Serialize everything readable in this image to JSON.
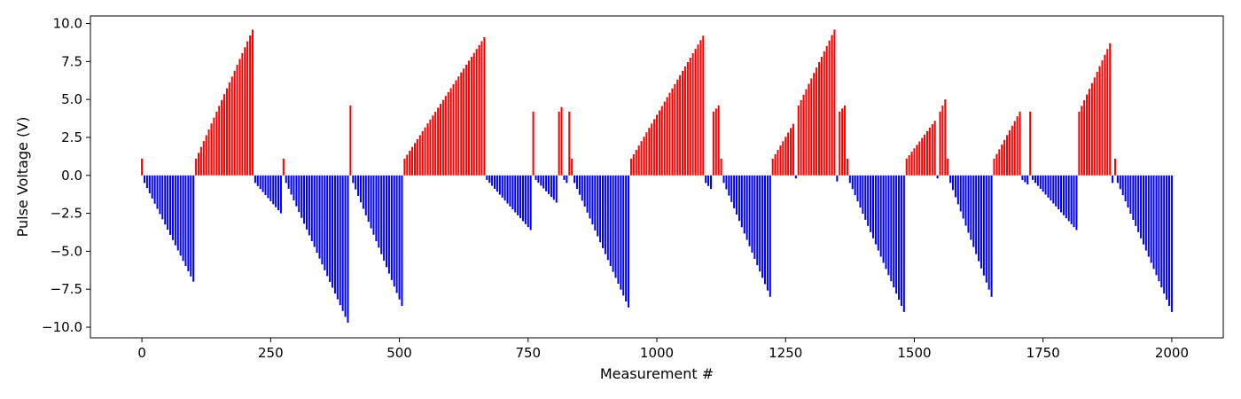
{
  "chart_data": {
    "type": "bar",
    "title": "",
    "xlabel": "Measurement #",
    "ylabel": "Pulse Voltage (V)",
    "xlim": [
      -100,
      2100
    ],
    "ylim": [
      -10.7,
      10.5
    ],
    "xticks": [
      0,
      250,
      500,
      750,
      1000,
      1250,
      1500,
      1750,
      2000
    ],
    "xtick_labels": [
      "0",
      "250",
      "500",
      "750",
      "1000",
      "1250",
      "1500",
      "1750",
      "2000"
    ],
    "yticks": [
      10.0,
      7.5,
      5.0,
      2.5,
      0.0,
      -2.5,
      -5.0,
      -7.5,
      -10.0
    ],
    "ytick_labels": [
      "10.0",
      "7.5",
      "5.0",
      "2.5",
      "0.0",
      "−10.0"
    ],
    "ytick_labels_full": [
      "10.0",
      "7.5",
      "5.0",
      "2.5",
      "0.0",
      "−2.5",
      "−5.0",
      "−7.5",
      "−10.0"
    ],
    "grid": false,
    "legend": "none",
    "bar_width": 3.5,
    "colors": {
      "positive": "#ff0000",
      "negative": "#0000ff"
    },
    "segments": [
      {
        "start": 0,
        "end": 0,
        "from": 1.1,
        "to": 1.1
      },
      {
        "start": 5,
        "end": 100,
        "from": -0.5,
        "to": -7.0
      },
      {
        "start": 105,
        "end": 215,
        "from": 1.1,
        "to": 9.6
      },
      {
        "start": 220,
        "end": 270,
        "from": -0.5,
        "to": -2.5
      },
      {
        "start": 275,
        "end": 275,
        "from": 1.1,
        "to": 1.1
      },
      {
        "start": 280,
        "end": 400,
        "from": -0.5,
        "to": -9.7
      },
      {
        "start": 405,
        "end": 405,
        "from": 4.6,
        "to": 4.6
      },
      {
        "start": 410,
        "end": 505,
        "from": -0.5,
        "to": -8.6
      },
      {
        "start": 510,
        "end": 665,
        "from": 1.1,
        "to": 9.1
      },
      {
        "start": 670,
        "end": 755,
        "from": -0.3,
        "to": -3.6
      },
      {
        "start": 760,
        "end": 760,
        "from": 4.2,
        "to": 4.2
      },
      {
        "start": 765,
        "end": 805,
        "from": -0.3,
        "to": -1.8
      },
      {
        "start": 810,
        "end": 815,
        "from": 4.2,
        "to": 4.5
      },
      {
        "start": 820,
        "end": 825,
        "from": -0.3,
        "to": -0.5
      },
      {
        "start": 830,
        "end": 830,
        "from": 4.2,
        "to": 4.2
      },
      {
        "start": 835,
        "end": 835,
        "from": 1.1,
        "to": 1.1
      },
      {
        "start": 840,
        "end": 945,
        "from": -0.5,
        "to": -8.7
      },
      {
        "start": 950,
        "end": 1090,
        "from": 1.1,
        "to": 9.2
      },
      {
        "start": 1095,
        "end": 1105,
        "from": -0.5,
        "to": -0.9
      },
      {
        "start": 1110,
        "end": 1120,
        "from": 4.2,
        "to": 4.6
      },
      {
        "start": 1125,
        "end": 1125,
        "from": 1.1,
        "to": 1.1
      },
      {
        "start": 1130,
        "end": 1220,
        "from": -0.5,
        "to": -8.0
      },
      {
        "start": 1225,
        "end": 1265,
        "from": 1.1,
        "to": 3.4
      },
      {
        "start": 1270,
        "end": 1270,
        "from": -0.2,
        "to": -0.2
      },
      {
        "start": 1275,
        "end": 1345,
        "from": 4.6,
        "to": 9.6
      },
      {
        "start": 1350,
        "end": 1350,
        "from": -0.4,
        "to": -0.4
      },
      {
        "start": 1355,
        "end": 1365,
        "from": 4.2,
        "to": 4.6
      },
      {
        "start": 1370,
        "end": 1370,
        "from": 1.1,
        "to": 1.1
      },
      {
        "start": 1375,
        "end": 1480,
        "from": -0.5,
        "to": -9.0
      },
      {
        "start": 1485,
        "end": 1540,
        "from": 1.1,
        "to": 3.6
      },
      {
        "start": 1545,
        "end": 1545,
        "from": -0.2,
        "to": -0.2
      },
      {
        "start": 1550,
        "end": 1560,
        "from": 4.2,
        "to": 5.0
      },
      {
        "start": 1565,
        "end": 1565,
        "from": 1.1,
        "to": 1.1
      },
      {
        "start": 1570,
        "end": 1650,
        "from": -0.5,
        "to": -8.0
      },
      {
        "start": 1655,
        "end": 1705,
        "from": 1.1,
        "to": 4.2
      },
      {
        "start": 1710,
        "end": 1720,
        "from": -0.3,
        "to": -0.6
      },
      {
        "start": 1725,
        "end": 1725,
        "from": 4.2,
        "to": 4.2
      },
      {
        "start": 1730,
        "end": 1815,
        "from": -0.3,
        "to": -3.6
      },
      {
        "start": 1820,
        "end": 1880,
        "from": 4.2,
        "to": 8.7
      },
      {
        "start": 1885,
        "end": 1885,
        "from": -0.5,
        "to": -0.5
      },
      {
        "start": 1890,
        "end": 1890,
        "from": 1.1,
        "to": 1.1
      },
      {
        "start": 1895,
        "end": 2000,
        "from": -0.5,
        "to": -9.0
      }
    ]
  }
}
